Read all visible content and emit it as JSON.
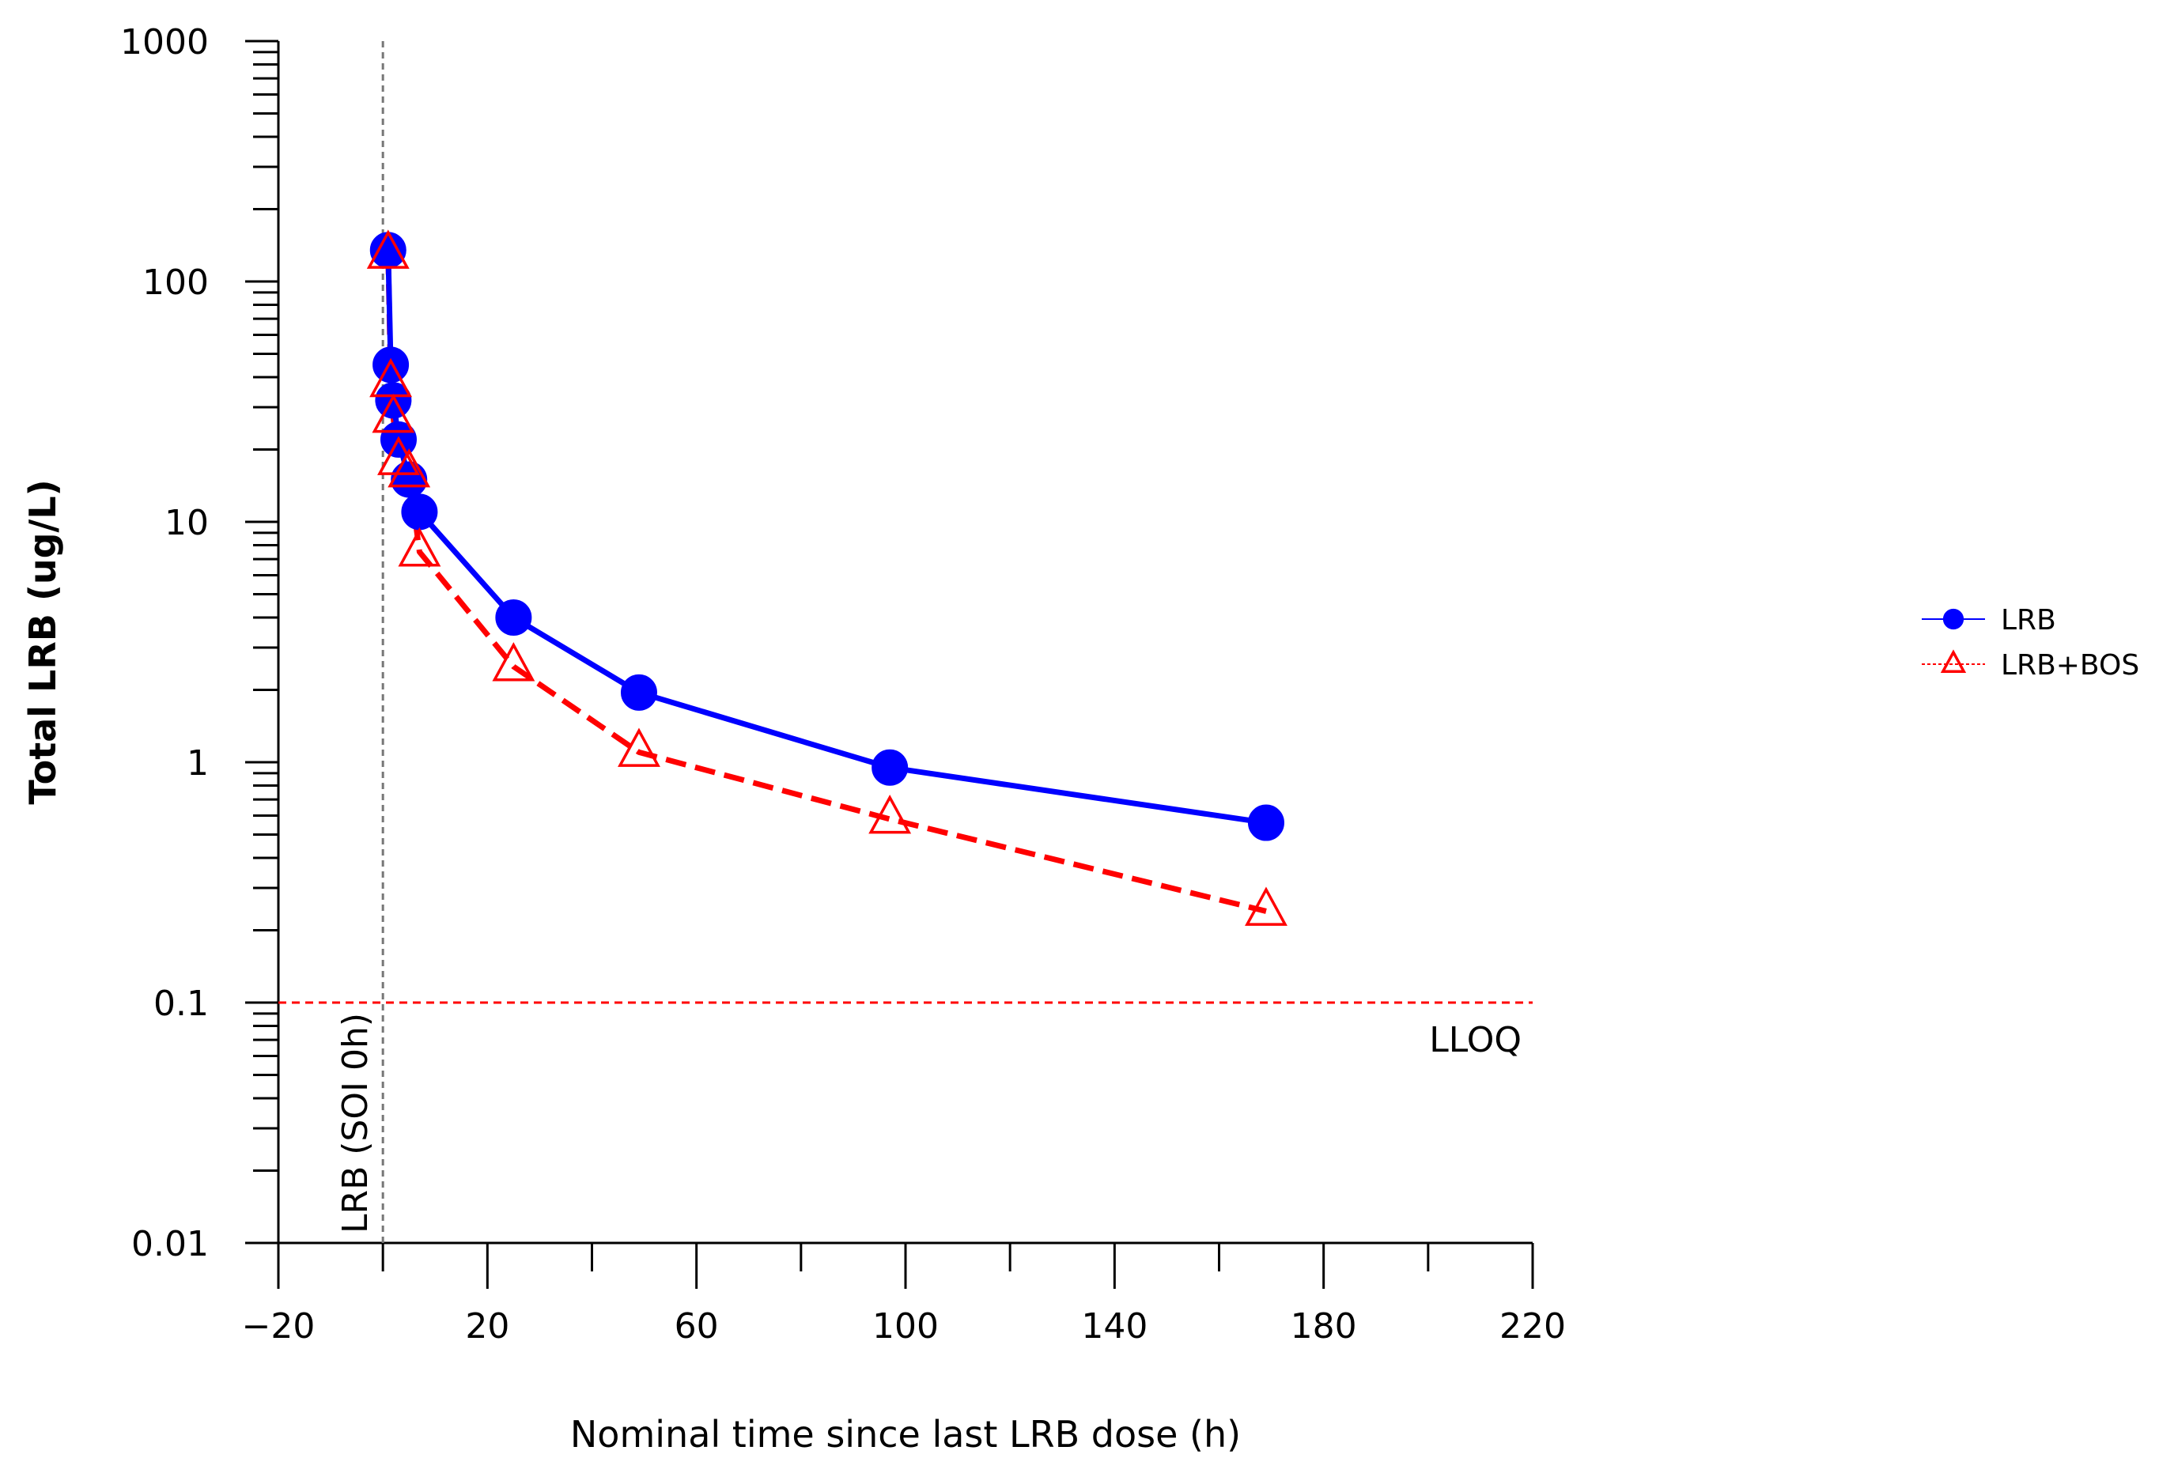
{
  "chart_data": {
    "type": "line",
    "title": "",
    "xlabel": "Nominal time since last LRB dose (h)",
    "ylabel": "Total LRB (ug/L)",
    "xlim": [
      -20,
      220
    ],
    "ylim": [
      0.01,
      1000
    ],
    "yscale": "log",
    "x_tick_labels": [
      "−20",
      "20",
      "60",
      "100",
      "140",
      "180",
      "220"
    ],
    "x_tick_values": [
      -20,
      20,
      60,
      100,
      140,
      180,
      220
    ],
    "x_minor_tick_step": 20,
    "y_tick_labels": [
      "1000",
      "100",
      "10",
      "1",
      "0.1",
      "0.01"
    ],
    "y_tick_values": [
      1000,
      100,
      10,
      1,
      0.1,
      0.01
    ],
    "series": [
      {
        "name": "LRB",
        "color": "#0000ff",
        "marker": "circle",
        "linestyle": "solid",
        "x": [
          1,
          1.5,
          2,
          3,
          5,
          7,
          25,
          49,
          97,
          169
        ],
        "y": [
          135,
          45,
          32,
          22,
          15,
          11,
          4.0,
          1.95,
          0.95,
          0.56
        ]
      },
      {
        "name": "LRB+BOS",
        "color": "#ff0000",
        "marker": "triangle-open",
        "linestyle": "dashed",
        "x": [
          1,
          1.5,
          2,
          3,
          5,
          7,
          25,
          49,
          97,
          169
        ],
        "y": [
          130,
          38,
          27,
          18,
          16,
          7.5,
          2.5,
          1.1,
          0.58,
          0.24
        ]
      }
    ],
    "reference_lines": [
      {
        "orientation": "vertical",
        "x": 0,
        "label": "LRB (SOI 0h)",
        "color": "#777777",
        "style": "dashed"
      },
      {
        "orientation": "horizontal",
        "y": 0.1,
        "label": "LLOQ",
        "color": "#ff0000",
        "style": "dashed"
      }
    ],
    "legend_position": "right"
  }
}
